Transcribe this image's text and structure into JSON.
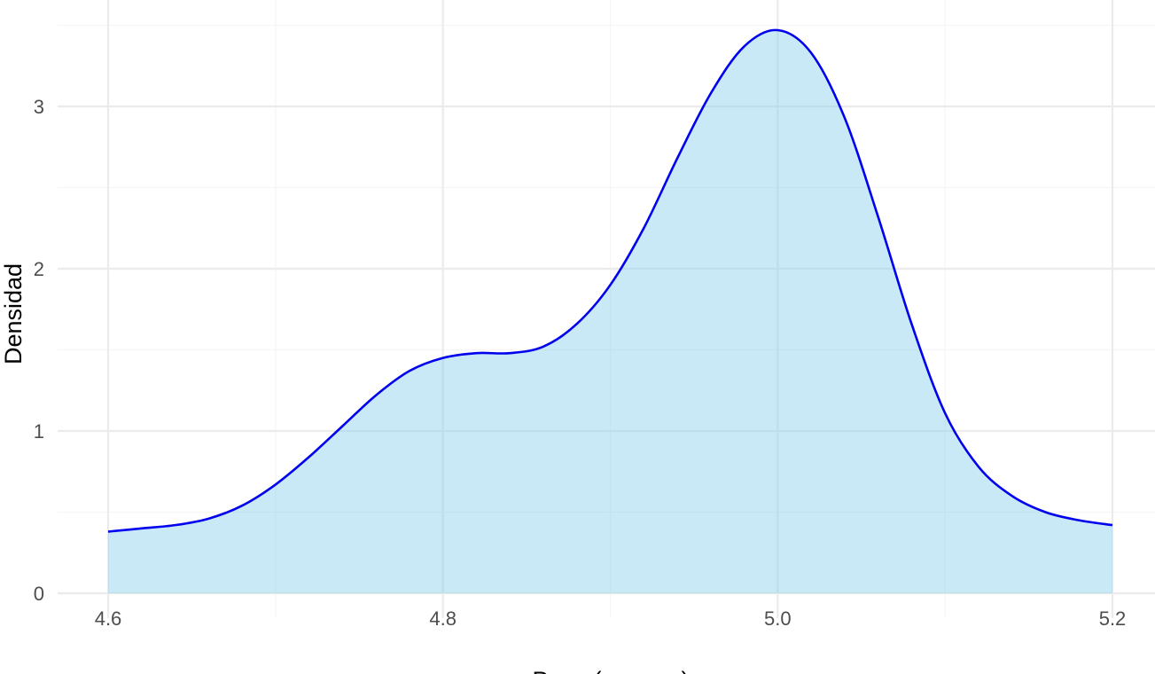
{
  "chart_data": {
    "type": "area",
    "xlabel": "Peso (gramos)",
    "ylabel": "Densidad",
    "xlim": [
      4.6,
      5.2
    ],
    "ylim": [
      0,
      3.47
    ],
    "x_ticks": [
      4.6,
      4.8,
      5.0,
      5.2
    ],
    "x_tick_labels": [
      "4.6",
      "4.8",
      "5.0",
      "5.2"
    ],
    "y_ticks": [
      0,
      1,
      2,
      3
    ],
    "y_tick_labels": [
      "0",
      "1",
      "2",
      "3"
    ],
    "grid": true,
    "legend": "none",
    "colors": {
      "line": "#0000ee",
      "fill": "#87ceeb",
      "grid_major": "#ebebeb",
      "grid_minor": "#f5f5f5",
      "tick_text": "#4d4d4d",
      "title_text": "#000000"
    },
    "series": [
      {
        "x": [
          4.6,
          4.62,
          4.64,
          4.66,
          4.68,
          4.7,
          4.72,
          4.74,
          4.76,
          4.78,
          4.8,
          4.82,
          4.84,
          4.86,
          4.88,
          4.9,
          4.92,
          4.94,
          4.96,
          4.98,
          5.0,
          5.02,
          5.04,
          5.06,
          5.08,
          5.1,
          5.12,
          5.14,
          5.16,
          5.18,
          5.2
        ],
        "y": [
          0.38,
          0.4,
          0.42,
          0.46,
          0.54,
          0.67,
          0.84,
          1.03,
          1.22,
          1.37,
          1.45,
          1.48,
          1.48,
          1.52,
          1.66,
          1.9,
          2.25,
          2.68,
          3.08,
          3.37,
          3.47,
          3.33,
          2.93,
          2.32,
          1.66,
          1.11,
          0.78,
          0.6,
          0.5,
          0.45,
          0.42
        ]
      }
    ]
  }
}
